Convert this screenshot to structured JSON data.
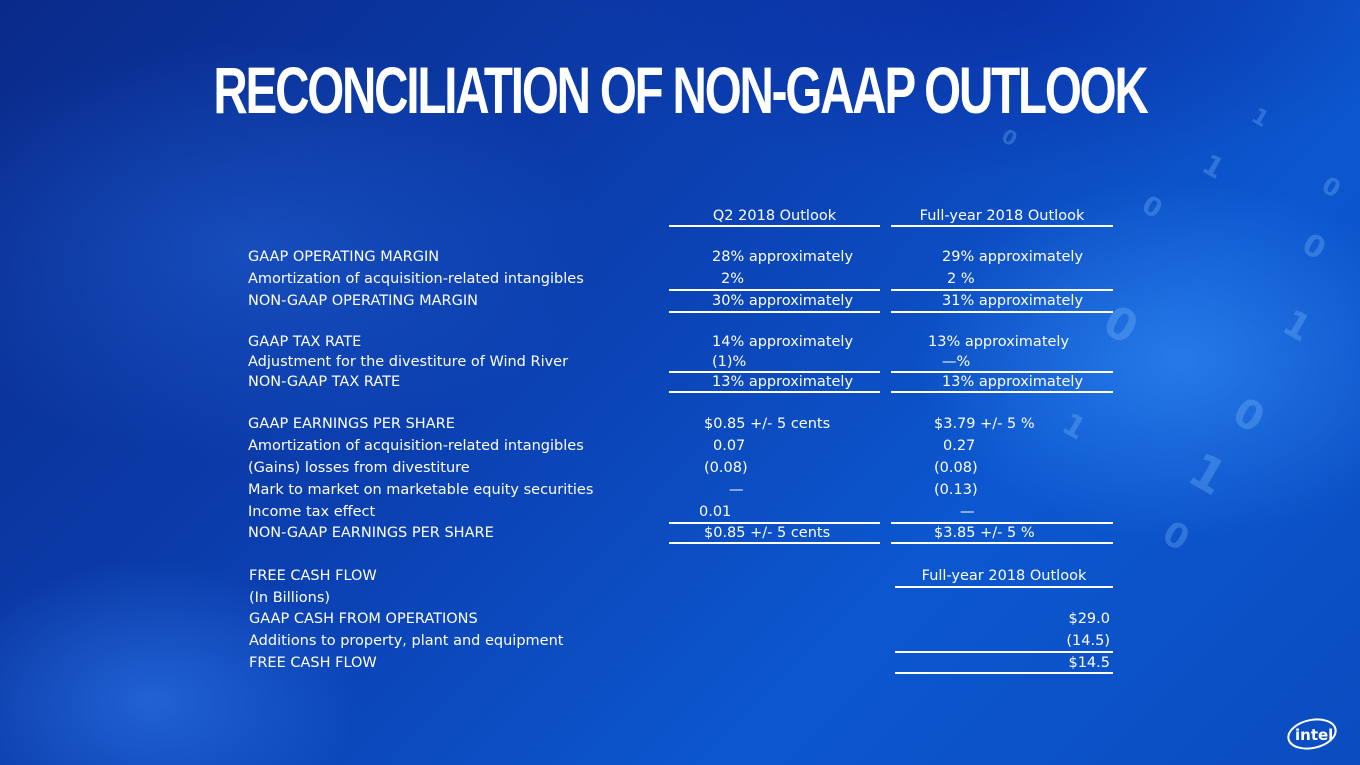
{
  "title": "RECONCILIATION OF NON-GAAP OUTLOOK",
  "columns": {
    "q2": "Q2 2018 Outlook",
    "fy": "Full-year 2018 Outlook"
  },
  "margin": {
    "gaap": {
      "label": "GAAP OPERATING MARGIN",
      "q2": "28% approximately",
      "fy": "29% approximately"
    },
    "amort": {
      "label": "Amortization of acquisition-related intangibles",
      "q2": "2%",
      "fy": "2 %"
    },
    "nongaap": {
      "label": "NON-GAAP OPERATING MARGIN",
      "q2": "30% approximately",
      "fy": "31% approximately"
    }
  },
  "tax": {
    "gaap": {
      "label": "GAAP TAX RATE",
      "q2": "14% approximately",
      "fy": "13% approximately"
    },
    "adj": {
      "label": "Adjustment for the divestiture of Wind River",
      "q2": "(1)%",
      "fy": "—%"
    },
    "nongaap": {
      "label": "NON-GAAP TAX RATE",
      "q2": "13% approximately",
      "fy": "13% approximately"
    }
  },
  "eps": {
    "gaap": {
      "label": "GAAP EARNINGS PER SHARE",
      "q2": "$0.85 +/- 5 cents",
      "fy": "$3.79 +/- 5 %"
    },
    "amort": {
      "label": "Amortization of acquisition-related intangibles",
      "q2": "0.07",
      "fy": "0.27"
    },
    "gains": {
      "label": "(Gains) losses from divestiture",
      "q2": "(0.08)",
      "fy": "(0.08)"
    },
    "mtm": {
      "label": "Mark to market on marketable equity securities",
      "q2": "—",
      "fy": "(0.13)"
    },
    "tax": {
      "label": "Income tax effect",
      "q2": "0.01",
      "fy": "—"
    },
    "nongaap": {
      "label": "NON-GAAP EARNINGS PER SHARE",
      "q2": "$0.85 +/- 5 cents",
      "fy": "$3.85 +/- 5 %"
    }
  },
  "fcf": {
    "header": "FREE CASH FLOW",
    "column": "Full-year 2018 Outlook",
    "units": "(In Billions)",
    "ops": {
      "label": "GAAP CASH FROM OPERATIONS",
      "value": "$29.0"
    },
    "capex": {
      "label": "Additions to property, plant and equipment",
      "value": "(14.5)"
    },
    "total": {
      "label": "FREE CASH FLOW",
      "value": "$14.5"
    }
  },
  "logo": "intel",
  "background_digits": [
    "1",
    "0",
    "0",
    "1",
    "0",
    "1",
    "0",
    "1",
    "0",
    "0",
    "1",
    "0"
  ]
}
